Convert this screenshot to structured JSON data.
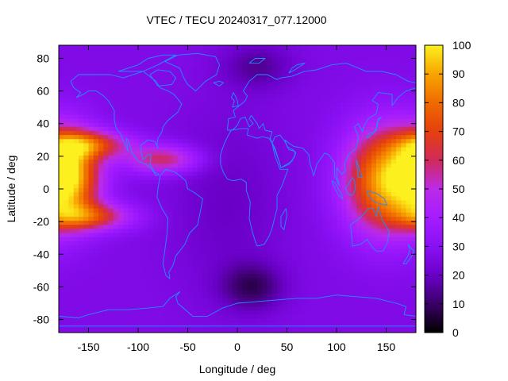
{
  "chart_data": {
    "type": "heatmap",
    "title": "VTEC / TECU 20240317_077.12000",
    "xlabel": "Longitude / deg",
    "ylabel": "Latitude / deg",
    "xlim": [
      -180,
      180
    ],
    "ylim": [
      -88,
      88
    ],
    "x_ticks": [
      -150,
      -100,
      -50,
      0,
      50,
      100,
      150
    ],
    "y_ticks": [
      -80,
      -60,
      -40,
      -20,
      0,
      20,
      40,
      60,
      80
    ],
    "colorbar": {
      "min": 0,
      "max": 100,
      "ticks": [
        0,
        10,
        20,
        30,
        40,
        50,
        60,
        70,
        80,
        90,
        100
      ]
    },
    "colormap": [
      "#000000",
      "#3a0067",
      "#6a00c8",
      "#8a10f4",
      "#a41cff",
      "#bb2be7",
      "#d12a5a",
      "#e5400d",
      "#f06a00",
      "#f8a400",
      "#fcf01e"
    ],
    "grid": false,
    "legend": "colorbar-right",
    "background_level": 27,
    "features": [
      {
        "label": "peak-pacific-west",
        "lon": -170,
        "lat": 8,
        "value": 92,
        "sigma_lon": 22,
        "sigma_lat": 18
      },
      {
        "label": "peak-asia-pacific",
        "lon": 148,
        "lat": 5,
        "value": 88,
        "sigma_lon": 28,
        "sigma_lat": 22
      },
      {
        "label": "north-crest-pacific",
        "lon": -150,
        "lat": 27,
        "value": 66,
        "sigma_lon": 30,
        "sigma_lat": 6
      },
      {
        "label": "south-crest-pacific",
        "lon": -150,
        "lat": -17,
        "value": 66,
        "sigma_lon": 30,
        "sigma_lat": 6
      },
      {
        "label": "north-crest-americas",
        "lon": -75,
        "lat": 18,
        "value": 60,
        "sigma_lon": 25,
        "sigma_lat": 6
      },
      {
        "label": "trough-africa-atlantic",
        "lon": -10,
        "lat": -10,
        "value": 20,
        "sigma_lon": 40,
        "sigma_lat": 40
      },
      {
        "label": "low-south-atlantic",
        "lon": 15,
        "lat": -60,
        "value": 10,
        "sigma_lon": 22,
        "sigma_lat": 10
      },
      {
        "label": "low-north-europe",
        "lon": 20,
        "lat": 75,
        "value": 15,
        "sigma_lon": 25,
        "sigma_lat": 10
      }
    ],
    "coastline_color": "#1e90ff"
  }
}
